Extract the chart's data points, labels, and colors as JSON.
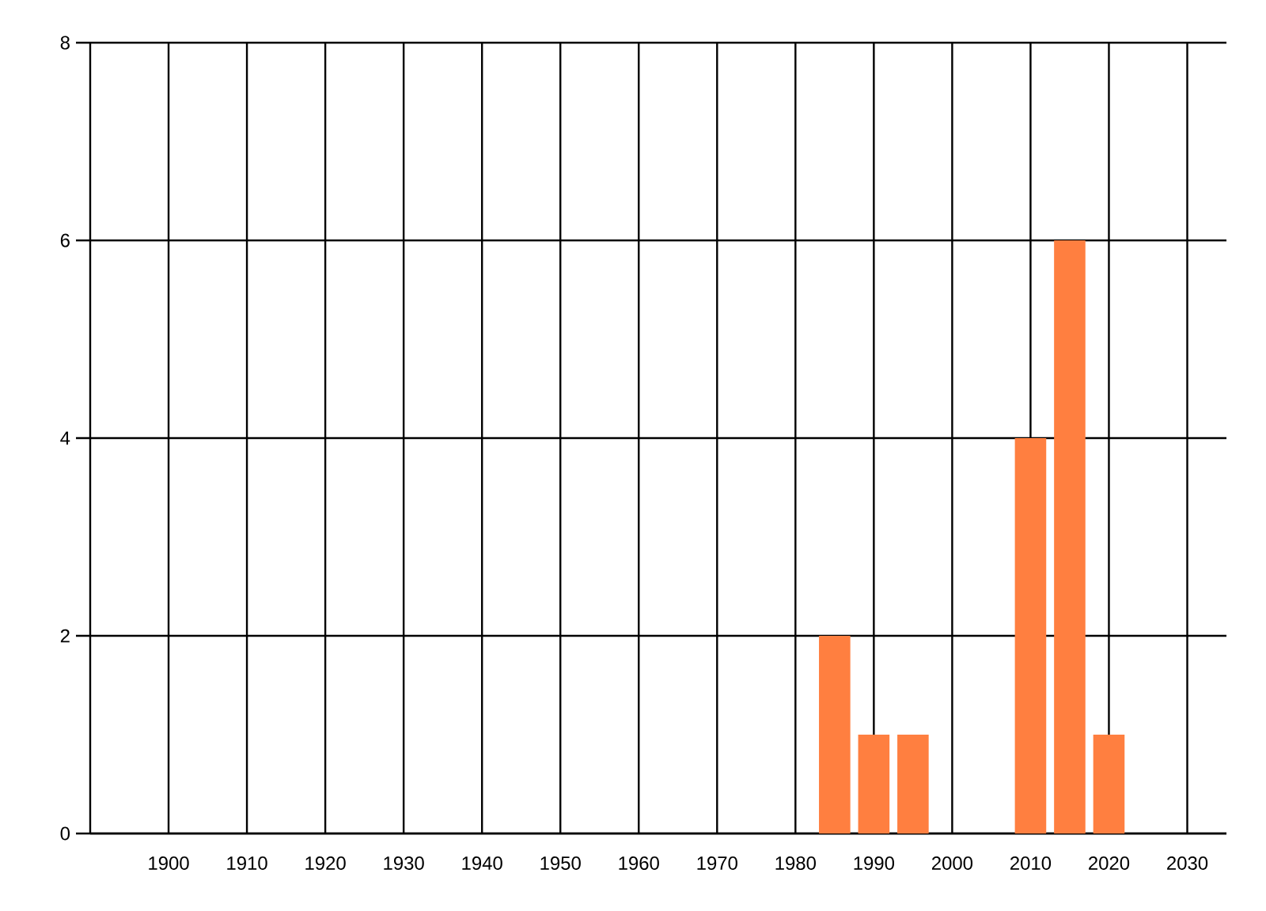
{
  "chart_data": {
    "type": "bar",
    "x": [
      1985,
      1990,
      1995,
      2010,
      2015,
      2020
    ],
    "values": [
      2,
      1,
      1,
      4,
      6,
      1
    ],
    "color": "#ff7f40",
    "xlim": [
      1890,
      2035
    ],
    "xticks": [
      1900,
      1910,
      1920,
      1930,
      1940,
      1950,
      1960,
      1970,
      1980,
      1990,
      2000,
      2010,
      2020,
      2030
    ],
    "ylim": [
      0,
      8
    ],
    "yticks": [
      0,
      2,
      4,
      6,
      8
    ],
    "grid": true
  }
}
